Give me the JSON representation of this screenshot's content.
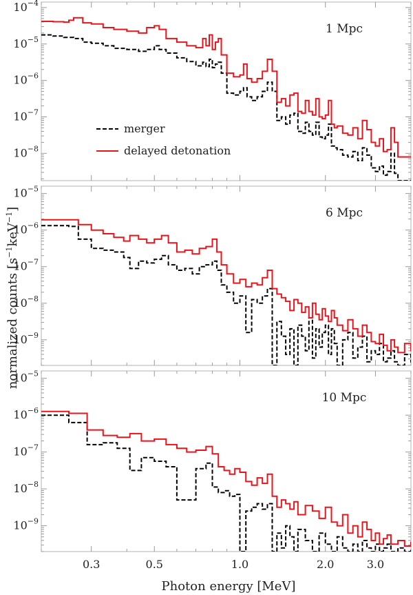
{
  "chart_data": {
    "type": "line",
    "xlabel": "Photon energy [MeV]",
    "ylabel": "normalized counts [s^-1 keV^-1]",
    "ylabel_parts": {
      "main": "normalized counts [s",
      "sup1": "−1",
      "mid": "keV",
      "sup2": "−1",
      "end": "]"
    },
    "xscale": "log",
    "yscale": "log",
    "xlim": [
      0.2,
      4.0
    ],
    "xticks": [
      0.3,
      0.5,
      1.0,
      2.0,
      3.0
    ],
    "xtick_labels": [
      "0.3",
      "0.5",
      "1.0",
      "2.0",
      "3.0"
    ],
    "legend": {
      "position": "upper-left inside top panel",
      "entries": [
        {
          "label": "merger",
          "style": "dashed",
          "color": "#000000"
        },
        {
          "label": "delayed detonation",
          "style": "solid",
          "color": "#e8141b"
        }
      ]
    },
    "panels": [
      {
        "label": "1 Mpc",
        "ylim_exp": [
          -8.75,
          -3.85
        ],
        "yticks_exp": [
          -4,
          -5,
          -6,
          -7,
          -8
        ],
        "series": [
          {
            "name": "delayed detonation",
            "x": [
              0.2,
              0.22,
              0.24,
              0.25,
              0.26,
              0.28,
              0.3,
              0.33,
              0.36,
              0.4,
              0.44,
              0.47,
              0.5,
              0.52,
              0.55,
              0.6,
              0.65,
              0.7,
              0.74,
              0.76,
              0.78,
              0.8,
              0.82,
              0.84,
              0.86,
              0.9,
              0.95,
              1.0,
              1.03,
              1.06,
              1.1,
              1.15,
              1.2,
              1.25,
              1.3,
              1.35,
              1.4,
              1.45,
              1.5,
              1.55,
              1.6,
              1.65,
              1.7,
              1.75,
              1.8,
              1.85,
              1.9,
              1.95,
              2.0,
              2.05,
              2.1,
              2.15,
              2.2,
              2.3,
              2.4,
              2.5,
              2.6,
              2.7,
              2.8,
              2.9,
              3.0,
              3.1,
              3.2,
              3.3,
              3.4,
              3.5,
              3.6
            ],
            "y_exp": [
              -4.38,
              -4.39,
              -4.4,
              -4.35,
              -4.28,
              -4.42,
              -4.45,
              -4.55,
              -4.6,
              -4.65,
              -4.7,
              -4.55,
              -4.5,
              -4.6,
              -4.85,
              -4.95,
              -5.05,
              -5.1,
              -4.85,
              -5.05,
              -4.75,
              -5.15,
              -4.95,
              -4.85,
              -5.3,
              -5.8,
              -5.9,
              -5.85,
              -5.55,
              -5.95,
              -6.05,
              -5.95,
              -5.75,
              -5.42,
              -5.75,
              -6.6,
              -6.5,
              -6.7,
              -6.4,
              -6.35,
              -6.85,
              -6.9,
              -6.55,
              -6.85,
              -6.95,
              -6.5,
              -7.0,
              -7.05,
              -6.95,
              -6.55,
              -7.2,
              -7.3,
              -7.25,
              -7.45,
              -7.5,
              -7.3,
              -7.6,
              -7.1,
              -7.35,
              -7.7,
              -7.8,
              -7.6,
              -7.95,
              -7.9,
              -7.3,
              -7.7,
              -8.1
            ]
          },
          {
            "name": "merger",
            "x": [
              0.2,
              0.22,
              0.24,
              0.26,
              0.28,
              0.3,
              0.33,
              0.36,
              0.4,
              0.44,
              0.47,
              0.5,
              0.52,
              0.55,
              0.6,
              0.65,
              0.7,
              0.74,
              0.76,
              0.78,
              0.8,
              0.82,
              0.84,
              0.86,
              0.9,
              0.95,
              1.0,
              1.03,
              1.06,
              1.1,
              1.15,
              1.2,
              1.25,
              1.3,
              1.35,
              1.4,
              1.45,
              1.5,
              1.55,
              1.6,
              1.65,
              1.7,
              1.75,
              1.8,
              1.85,
              1.9,
              1.95,
              2.0,
              2.05,
              2.1,
              2.15,
              2.2,
              2.3,
              2.4,
              2.5,
              2.6,
              2.7,
              2.8,
              2.9,
              3.0,
              3.1,
              3.2,
              3.3,
              3.4,
              3.5,
              3.6
            ],
            "y_exp": [
              -4.75,
              -4.78,
              -4.82,
              -4.85,
              -4.95,
              -4.98,
              -5.05,
              -5.12,
              -5.15,
              -5.2,
              -5.15,
              -5.05,
              -5.15,
              -5.25,
              -5.38,
              -5.48,
              -5.6,
              -5.5,
              -5.62,
              -5.42,
              -5.65,
              -5.55,
              -5.5,
              -5.8,
              -6.35,
              -6.4,
              -6.3,
              -6.2,
              -6.45,
              -6.55,
              -6.45,
              -6.3,
              -6.05,
              -6.3,
              -7.1,
              -7.0,
              -7.2,
              -6.95,
              -6.9,
              -7.4,
              -7.45,
              -7.15,
              -7.4,
              -7.5,
              -7.15,
              -7.55,
              -7.6,
              -7.5,
              -7.2,
              -7.8,
              -7.85,
              -7.9,
              -8.05,
              -8.1,
              -7.95,
              -8.2,
              -7.85,
              -8.05,
              -8.4,
              -8.5,
              -8.35,
              -8.6,
              -8.5,
              -8.0,
              -8.55,
              -8.75
            ]
          }
        ]
      },
      {
        "label": "6 Mpc",
        "ylim_exp": [
          -9.7,
          -4.8
        ],
        "yticks_exp": [
          -5,
          -6,
          -7,
          -8,
          -9
        ],
        "series": [
          {
            "name": "delayed detonation",
            "x": [
              0.2,
              0.23,
              0.25,
              0.27,
              0.3,
              0.33,
              0.36,
              0.39,
              0.41,
              0.44,
              0.47,
              0.5,
              0.53,
              0.56,
              0.6,
              0.64,
              0.68,
              0.72,
              0.76,
              0.8,
              0.83,
              0.86,
              0.9,
              0.95,
              1.0,
              1.05,
              1.1,
              1.15,
              1.2,
              1.25,
              1.3,
              1.35,
              1.4,
              1.45,
              1.5,
              1.55,
              1.6,
              1.65,
              1.7,
              1.75,
              1.8,
              1.85,
              1.9,
              1.95,
              2.0,
              2.05,
              2.1,
              2.15,
              2.2,
              2.3,
              2.4,
              2.5,
              2.6,
              2.7,
              2.8,
              2.9,
              3.0,
              3.1,
              3.2,
              3.3,
              3.4,
              3.5,
              3.6,
              3.8,
              4.0
            ],
            "y_exp": [
              -5.72,
              -5.72,
              -5.72,
              -5.85,
              -6.0,
              -6.1,
              -6.2,
              -6.3,
              -6.15,
              -6.25,
              -6.35,
              -6.25,
              -6.15,
              -6.35,
              -6.6,
              -6.55,
              -6.65,
              -6.5,
              -6.45,
              -6.25,
              -6.6,
              -6.95,
              -7.2,
              -7.45,
              -7.35,
              -7.55,
              -7.45,
              -7.5,
              -7.3,
              -7.1,
              -7.6,
              -7.75,
              -7.85,
              -7.95,
              -8.2,
              -7.9,
              -8.0,
              -8.25,
              -8.1,
              -8.4,
              -8.0,
              -8.3,
              -8.45,
              -8.15,
              -8.35,
              -8.5,
              -8.2,
              -8.4,
              -8.6,
              -8.75,
              -8.45,
              -8.7,
              -8.9,
              -8.6,
              -8.8,
              -9.05,
              -9.1,
              -8.85,
              -9.15,
              -9.3,
              -9.0,
              -9.2,
              -9.35,
              -9.1,
              -9.3
            ]
          },
          {
            "name": "merger",
            "x": [
              0.2,
              0.23,
              0.25,
              0.27,
              0.3,
              0.33,
              0.36,
              0.39,
              0.41,
              0.44,
              0.47,
              0.5,
              0.53,
              0.56,
              0.6,
              0.64,
              0.68,
              0.72,
              0.76,
              0.8,
              0.83,
              0.86,
              0.9,
              0.95,
              1.0,
              1.05,
              1.1,
              1.15,
              1.2,
              1.25,
              1.3,
              1.35,
              1.4,
              1.45,
              1.5,
              1.55,
              1.6,
              1.65,
              1.7,
              1.75,
              1.8,
              1.85,
              1.9,
              1.95,
              2.0,
              2.05,
              2.1,
              2.15,
              2.2,
              2.3,
              2.4,
              2.5,
              2.6,
              2.7,
              2.8,
              2.9,
              3.0,
              3.1,
              3.2,
              3.3,
              3.4,
              3.5,
              3.6,
              3.8,
              4.0
            ],
            "y_exp": [
              -5.88,
              -5.88,
              -5.9,
              -6.25,
              -6.5,
              -6.55,
              -6.6,
              -6.75,
              -7.05,
              -6.85,
              -6.9,
              -6.8,
              -6.7,
              -6.95,
              -7.1,
              -7.05,
              -7.2,
              -7.0,
              -6.95,
              -6.85,
              -7.1,
              -7.5,
              -7.7,
              -8.0,
              -7.8,
              -8.8,
              -7.9,
              -8.0,
              -7.8,
              -7.6,
              -9.7,
              -8.5,
              -8.9,
              -9.4,
              -8.7,
              -9.7,
              -8.6,
              -8.9,
              -9.3,
              -8.4,
              -9.5,
              -8.7,
              -9.2,
              -8.8,
              -8.6,
              -9.4,
              -8.7,
              -9.1,
              -9.7,
              -9.0,
              -8.8,
              -9.5,
              -9.2,
              -8.9,
              -9.6,
              -9.3,
              -9.4,
              -9.1,
              -9.6,
              -9.5,
              -9.3,
              -9.6,
              -9.7,
              -9.4,
              -9.6
            ]
          }
        ]
      },
      {
        "label": "10 Mpc",
        "ylim_exp": [
          -9.7,
          -4.8
        ],
        "yticks_exp": [
          -5,
          -6,
          -7,
          -8,
          -9
        ],
        "series": [
          {
            "name": "delayed detonation",
            "x": [
              0.2,
              0.25,
              0.29,
              0.33,
              0.37,
              0.41,
              0.45,
              0.5,
              0.55,
              0.6,
              0.65,
              0.7,
              0.76,
              0.8,
              0.84,
              0.88,
              0.92,
              0.96,
              1.0,
              1.05,
              1.1,
              1.15,
              1.2,
              1.25,
              1.3,
              1.35,
              1.4,
              1.45,
              1.5,
              1.55,
              1.6,
              1.7,
              1.8,
              1.9,
              2.0,
              2.1,
              2.2,
              2.3,
              2.4,
              2.5,
              2.6,
              2.7,
              2.8,
              2.9,
              3.0,
              3.1,
              3.2,
              3.3,
              3.4,
              3.6,
              3.8,
              4.0
            ],
            "y_exp": [
              -5.9,
              -5.95,
              -6.4,
              -6.55,
              -6.6,
              -6.5,
              -6.7,
              -6.65,
              -6.8,
              -6.9,
              -7.0,
              -6.95,
              -6.85,
              -7.05,
              -7.4,
              -7.5,
              -7.6,
              -7.45,
              -7.55,
              -7.8,
              -7.9,
              -7.7,
              -7.85,
              -7.6,
              -8.2,
              -8.5,
              -8.3,
              -8.4,
              -8.55,
              -8.35,
              -8.7,
              -8.45,
              -8.6,
              -8.8,
              -8.5,
              -8.9,
              -9.0,
              -8.7,
              -9.2,
              -9.0,
              -9.3,
              -8.9,
              -9.1,
              -9.4,
              -9.2,
              -9.5,
              -9.35,
              -9.25,
              -9.5,
              -9.4,
              -9.55,
              -9.45
            ]
          },
          {
            "name": "merger",
            "x": [
              0.2,
              0.25,
              0.29,
              0.33,
              0.37,
              0.41,
              0.45,
              0.5,
              0.55,
              0.6,
              0.65,
              0.7,
              0.76,
              0.8,
              0.84,
              0.88,
              0.92,
              0.96,
              1.0,
              1.05,
              1.1,
              1.15,
              1.2,
              1.25,
              1.3,
              1.35,
              1.4,
              1.45,
              1.5,
              1.55,
              1.6,
              1.7,
              1.8,
              1.9,
              2.0,
              2.1,
              2.2,
              2.3,
              2.4,
              2.5,
              2.6,
              2.7,
              2.8,
              2.9,
              3.0,
              3.1,
              3.2,
              3.3,
              3.4,
              3.6,
              3.8,
              4.0
            ],
            "y_exp": [
              -6.0,
              -6.2,
              -6.8,
              -6.75,
              -6.9,
              -7.5,
              -7.15,
              -7.25,
              -7.4,
              -8.3,
              -8.3,
              -7.45,
              -7.3,
              -7.95,
              -8.1,
              -8.05,
              -8.2,
              -8.15,
              -9.7,
              -8.6,
              -8.5,
              -8.4,
              -8.55,
              -8.4,
              -9.7,
              -9.2,
              -9.6,
              -9.0,
              -9.3,
              -9.7,
              -9.1,
              -9.4,
              -9.7,
              -9.2,
              -9.5,
              -9.7,
              -9.3,
              -9.6,
              -9.7,
              -9.5,
              -9.7,
              -9.4,
              -9.6,
              -9.7,
              -9.5,
              -9.7,
              -9.6,
              -9.5,
              -9.7,
              -9.6,
              -9.7,
              -9.65
            ]
          }
        ]
      }
    ]
  }
}
